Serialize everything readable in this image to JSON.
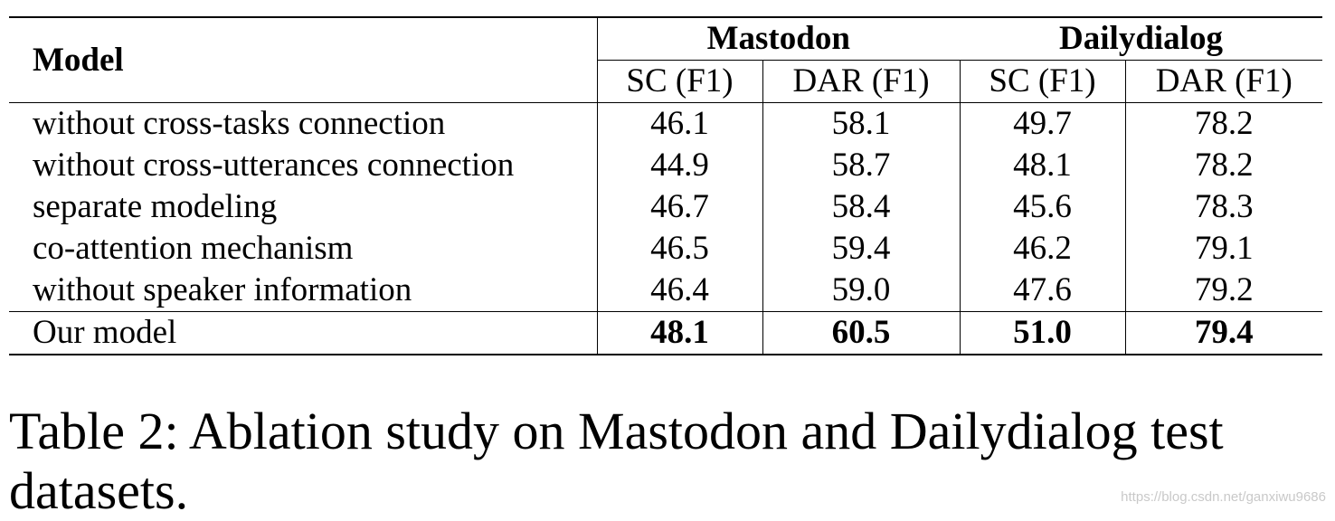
{
  "table": {
    "header": {
      "model_label": "Model",
      "groups": [
        "Mastodon",
        "Dailydialog"
      ],
      "subcolumns": [
        "SC (F1)",
        "DAR (F1)",
        "SC (F1)",
        "DAR (F1)"
      ]
    },
    "rows": [
      {
        "label": "without cross-tasks connection",
        "values": [
          "46.1",
          "58.1",
          "49.7",
          "78.2"
        ]
      },
      {
        "label": "without cross-utterances connection",
        "values": [
          "44.9",
          "58.7",
          "48.1",
          "78.2"
        ]
      },
      {
        "label": "separate modeling",
        "values": [
          "46.7",
          "58.4",
          "45.6",
          "78.3"
        ]
      },
      {
        "label": "co-attention mechanism",
        "values": [
          "46.5",
          "59.4",
          "46.2",
          "79.1"
        ]
      },
      {
        "label": "without speaker information",
        "values": [
          "46.4",
          "59.0",
          "47.6",
          "79.2"
        ]
      }
    ],
    "final_row": {
      "label": "Our model",
      "values": [
        "48.1",
        "60.5",
        "51.0",
        "79.4"
      ]
    }
  },
  "caption": "Table 2: Ablation study on Mastodon and Dailydialog test datasets.",
  "watermark": "https://blog.csdn.net/ganxiwu9686"
}
